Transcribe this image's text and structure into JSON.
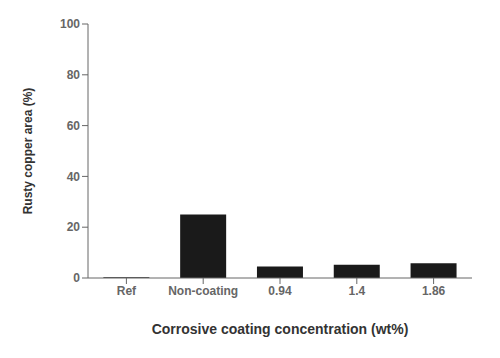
{
  "chart_data": {
    "type": "bar",
    "categories": [
      "Ref",
      "Non-coating",
      "0.94",
      "1.4",
      "1.86"
    ],
    "values": [
      0.3,
      25.0,
      4.5,
      5.2,
      5.8
    ],
    "color": "#1a1a1a",
    "xlabel": "Corrosive coating concentration (wt%)",
    "ylabel": "Rusty copper area (%)",
    "ylim": [
      0,
      100
    ],
    "yticks": [
      0,
      20,
      40,
      60,
      80,
      100
    ],
    "grid": false
  }
}
